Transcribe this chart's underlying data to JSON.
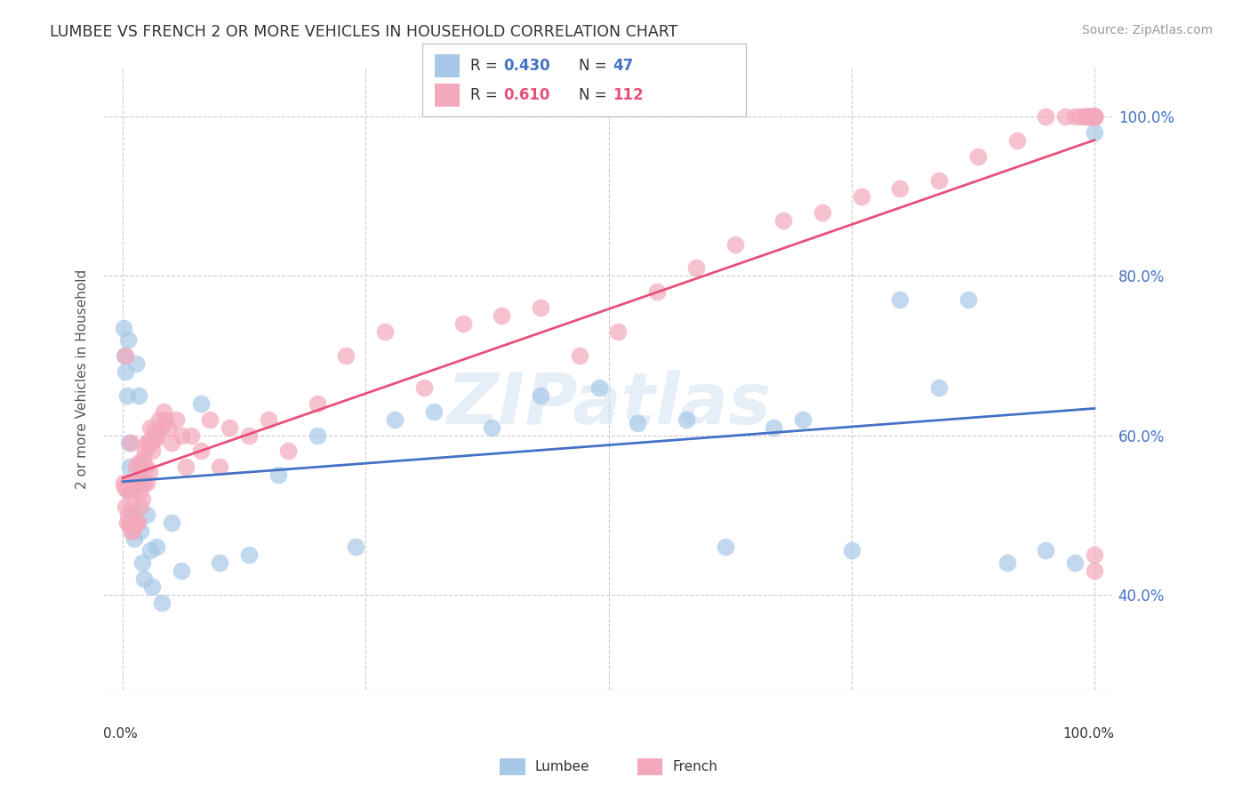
{
  "title": "LUMBEE VS FRENCH 2 OR MORE VEHICLES IN HOUSEHOLD CORRELATION CHART",
  "source": "Source: ZipAtlas.com",
  "ylabel": "2 or more Vehicles in Household",
  "lumbee_R": 0.43,
  "lumbee_N": 47,
  "french_R": 0.61,
  "french_N": 112,
  "lumbee_color": "#a8c8e8",
  "french_color": "#f4a8bc",
  "lumbee_line_color": "#4472c4",
  "french_line_color": "#e8507a",
  "background_color": "#ffffff",
  "grid_color": "#cccccc",
  "lumbee_x": [
    0.001,
    0.002,
    0.003,
    0.004,
    0.005,
    0.006,
    0.007,
    0.008,
    0.01,
    0.012,
    0.014,
    0.015,
    0.016,
    0.018,
    0.02,
    0.022,
    0.025,
    0.028,
    0.03,
    0.035,
    0.04,
    0.05,
    0.06,
    0.08,
    0.1,
    0.13,
    0.16,
    0.2,
    0.24,
    0.28,
    0.32,
    0.38,
    0.43,
    0.49,
    0.53,
    0.58,
    0.62,
    0.67,
    0.7,
    0.75,
    0.8,
    0.84,
    0.87,
    0.91,
    0.95,
    0.98,
    1.0
  ],
  "lumbee_y": [
    0.735,
    0.7,
    0.68,
    0.65,
    0.72,
    0.59,
    0.56,
    0.53,
    0.5,
    0.47,
    0.69,
    0.54,
    0.65,
    0.48,
    0.44,
    0.42,
    0.5,
    0.455,
    0.41,
    0.46,
    0.39,
    0.49,
    0.43,
    0.64,
    0.44,
    0.45,
    0.55,
    0.6,
    0.46,
    0.62,
    0.63,
    0.61,
    0.65,
    0.66,
    0.615,
    0.62,
    0.46,
    0.61,
    0.62,
    0.455,
    0.77,
    0.66,
    0.77,
    0.44,
    0.455,
    0.44,
    0.98
  ],
  "french_x": [
    0.001,
    0.002,
    0.003,
    0.003,
    0.004,
    0.004,
    0.005,
    0.005,
    0.006,
    0.006,
    0.007,
    0.007,
    0.008,
    0.008,
    0.009,
    0.009,
    0.01,
    0.01,
    0.011,
    0.011,
    0.012,
    0.012,
    0.013,
    0.013,
    0.014,
    0.014,
    0.015,
    0.015,
    0.016,
    0.017,
    0.018,
    0.018,
    0.019,
    0.02,
    0.021,
    0.022,
    0.023,
    0.024,
    0.025,
    0.025,
    0.026,
    0.027,
    0.028,
    0.029,
    0.03,
    0.032,
    0.034,
    0.035,
    0.037,
    0.039,
    0.042,
    0.044,
    0.047,
    0.05,
    0.055,
    0.06,
    0.065,
    0.07,
    0.08,
    0.09,
    0.1,
    0.11,
    0.13,
    0.15,
    0.17,
    0.2,
    0.23,
    0.27,
    0.31,
    0.35,
    0.39,
    0.43,
    0.47,
    0.51,
    0.55,
    0.59,
    0.63,
    0.68,
    0.72,
    0.76,
    0.8,
    0.84,
    0.88,
    0.92,
    0.95,
    0.97,
    0.98,
    0.985,
    0.99,
    0.992,
    0.993,
    0.994,
    0.995,
    0.996,
    0.997,
    0.998,
    0.998,
    0.999,
    0.999,
    1.0,
    1.0,
    1.0,
    1.0,
    1.0,
    1.0,
    1.0,
    1.0,
    1.0,
    1.0,
    1.0,
    1.0,
    1.0
  ],
  "french_y": [
    0.54,
    0.535,
    0.7,
    0.51,
    0.53,
    0.49,
    0.54,
    0.5,
    0.53,
    0.49,
    0.54,
    0.49,
    0.59,
    0.48,
    0.54,
    0.49,
    0.51,
    0.48,
    0.54,
    0.49,
    0.54,
    0.49,
    0.54,
    0.49,
    0.56,
    0.49,
    0.565,
    0.49,
    0.545,
    0.53,
    0.56,
    0.51,
    0.54,
    0.52,
    0.57,
    0.54,
    0.58,
    0.56,
    0.59,
    0.54,
    0.59,
    0.555,
    0.61,
    0.59,
    0.58,
    0.605,
    0.595,
    0.6,
    0.62,
    0.61,
    0.63,
    0.62,
    0.61,
    0.59,
    0.62,
    0.6,
    0.56,
    0.6,
    0.58,
    0.62,
    0.56,
    0.61,
    0.6,
    0.62,
    0.58,
    0.64,
    0.7,
    0.73,
    0.66,
    0.74,
    0.75,
    0.76,
    0.7,
    0.73,
    0.78,
    0.81,
    0.84,
    0.87,
    0.88,
    0.9,
    0.91,
    0.92,
    0.95,
    0.97,
    1.0,
    1.0,
    1.0,
    1.0,
    1.0,
    1.0,
    1.0,
    1.0,
    1.0,
    1.0,
    1.0,
    1.0,
    1.0,
    1.0,
    1.0,
    1.0,
    1.0,
    1.0,
    1.0,
    1.0,
    1.0,
    1.0,
    1.0,
    1.0,
    1.0,
    1.0,
    0.43,
    0.45
  ],
  "xmin": 0.0,
  "xmax": 1.0,
  "ymin": 0.28,
  "ymax": 1.06,
  "yticks": [
    0.4,
    0.6,
    0.8,
    1.0
  ],
  "ytick_labels": [
    "40.0%",
    "60.0%",
    "80.0%",
    "100.0%"
  ],
  "xtick_labels": [
    "0.0%",
    "100.0%"
  ],
  "bottom_legend_labels": [
    "Lumbee",
    "French"
  ],
  "watermark": "ZIPatlas"
}
